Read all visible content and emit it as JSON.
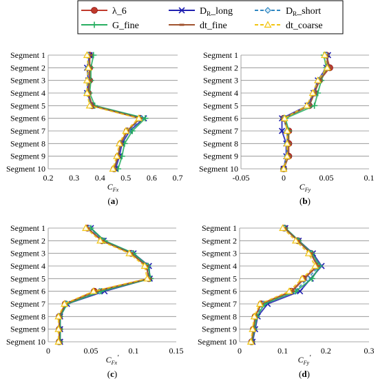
{
  "legend": {
    "entries": [
      {
        "label": "λ_6",
        "color": "#c0392b",
        "marker": "circle",
        "dash": "solid"
      },
      {
        "label": "D",
        "sub": "R",
        "suffix": "_long",
        "color": "#1f1fb0",
        "marker": "x",
        "dash": "solid"
      },
      {
        "label": "D",
        "sub": "R",
        "suffix": "_short",
        "color": "#2e86c1",
        "marker": "diamond",
        "dash": "dashed"
      },
      {
        "label": "G_fine",
        "color": "#27ae60",
        "marker": "plus",
        "dash": "solid"
      },
      {
        "label": "dt_fine",
        "color": "#a0522d",
        "marker": "dash",
        "dash": "solid"
      },
      {
        "label": "dt_coarse",
        "color": "#f1c40f",
        "marker": "triangle",
        "dash": "dashed"
      }
    ]
  },
  "chart_data": [
    {
      "type": "line",
      "panel_label": "(a)",
      "xlabel": "C",
      "xlabel_sub": "Fx",
      "xlabel_prime": false,
      "xlim": [
        0.2,
        0.7
      ],
      "xticks": [
        0.2,
        0.3,
        0.4,
        0.5,
        0.6,
        0.7
      ],
      "xtick_labels": [
        "0.2",
        "0.3",
        "0.4",
        "0.5",
        "0.6",
        "0.7"
      ],
      "categories": [
        "Segment 1",
        "Segment 2",
        "Segment 3",
        "Segment 4",
        "Segment 5",
        "Segment 6",
        "Segment 7",
        "Segment 8",
        "Segment 9",
        "Segment 10"
      ],
      "series": [
        {
          "name": "λ_6",
          "values": [
            0.36,
            0.36,
            0.36,
            0.355,
            0.37,
            0.555,
            0.505,
            0.48,
            0.47,
            0.455
          ]
        },
        {
          "name": "D_R_long",
          "values": [
            0.36,
            0.35,
            0.355,
            0.35,
            0.37,
            0.57,
            0.515,
            0.485,
            0.475,
            0.46
          ]
        },
        {
          "name": "D_R_short",
          "values": [
            0.355,
            0.355,
            0.355,
            0.35,
            0.365,
            0.56,
            0.51,
            0.48,
            0.47,
            0.455
          ]
        },
        {
          "name": "G_fine",
          "values": [
            0.375,
            0.365,
            0.365,
            0.36,
            0.38,
            0.575,
            0.525,
            0.495,
            0.485,
            0.47
          ]
        },
        {
          "name": "dt_fine",
          "values": [
            0.36,
            0.36,
            0.36,
            0.355,
            0.37,
            0.555,
            0.505,
            0.48,
            0.47,
            0.455
          ]
        },
        {
          "name": "dt_coarse",
          "values": [
            0.35,
            0.355,
            0.35,
            0.35,
            0.36,
            0.55,
            0.5,
            0.475,
            0.465,
            0.45
          ]
        }
      ]
    },
    {
      "type": "line",
      "panel_label": "(b)",
      "xlabel": "C",
      "xlabel_sub": "Fy",
      "xlabel_prime": false,
      "xlim": [
        -0.05,
        0.1
      ],
      "xticks": [
        -0.05,
        0,
        0.05,
        0.1
      ],
      "xtick_labels": [
        "-0.05",
        "0",
        "0.05",
        "0.1"
      ],
      "categories": [
        "Segment 1",
        "Segment 2",
        "Segment 3",
        "Segment 4",
        "Segment 5",
        "Segment 6",
        "Segment 7",
        "Segment 8",
        "Segment 9",
        "Segment 10"
      ],
      "series": [
        {
          "name": "λ_6",
          "values": [
            0.05,
            0.054,
            0.042,
            0.036,
            0.03,
            0.0,
            0.006,
            0.006,
            0.006,
            0.0
          ]
        },
        {
          "name": "D_R_long",
          "values": [
            0.052,
            0.05,
            0.04,
            0.035,
            0.028,
            -0.002,
            -0.002,
            0.003,
            0.003,
            0.0
          ]
        },
        {
          "name": "D_R_short",
          "values": [
            0.05,
            0.052,
            0.041,
            0.036,
            0.03,
            0.0,
            0.004,
            0.004,
            0.004,
            0.0
          ]
        },
        {
          "name": "G_fine",
          "values": [
            0.047,
            0.05,
            0.044,
            0.04,
            0.036,
            0.002,
            0.006,
            0.005,
            0.005,
            0.0
          ]
        },
        {
          "name": "dt_fine",
          "values": [
            0.05,
            0.053,
            0.042,
            0.036,
            0.03,
            0.0,
            0.005,
            0.005,
            0.005,
            0.0
          ]
        },
        {
          "name": "dt_coarse",
          "values": [
            0.048,
            0.051,
            0.04,
            0.034,
            0.027,
            0.001,
            0.004,
            0.004,
            0.004,
            0.0
          ]
        }
      ]
    },
    {
      "type": "line",
      "panel_label": "(c)",
      "xlabel": "C",
      "xlabel_sub": "Fx",
      "xlabel_prime": true,
      "xlim": [
        0,
        0.15
      ],
      "xticks": [
        0,
        0.05,
        0.1,
        0.15
      ],
      "xtick_labels": [
        "0",
        "0.05",
        "0.1",
        "0.15"
      ],
      "categories": [
        "Segment 1",
        "Segment 2",
        "Segment 3",
        "Segment 4",
        "Segment 5",
        "Segment 6",
        "Segment 7",
        "Segment 8",
        "Segment 9",
        "Segment 10"
      ],
      "series": [
        {
          "name": "λ_6",
          "values": [
            0.046,
            0.063,
            0.097,
            0.115,
            0.118,
            0.054,
            0.02,
            0.013,
            0.013,
            0.013
          ]
        },
        {
          "name": "D_R_long",
          "values": [
            0.05,
            0.065,
            0.1,
            0.118,
            0.119,
            0.066,
            0.022,
            0.014,
            0.014,
            0.014
          ]
        },
        {
          "name": "D_R_short",
          "values": [
            0.048,
            0.064,
            0.098,
            0.116,
            0.118,
            0.06,
            0.021,
            0.013,
            0.013,
            0.013
          ]
        },
        {
          "name": "G_fine",
          "values": [
            0.05,
            0.066,
            0.1,
            0.117,
            0.12,
            0.062,
            0.022,
            0.014,
            0.014,
            0.014
          ]
        },
        {
          "name": "dt_fine",
          "values": [
            0.046,
            0.063,
            0.097,
            0.115,
            0.118,
            0.056,
            0.02,
            0.013,
            0.013,
            0.013
          ]
        },
        {
          "name": "dt_coarse",
          "values": [
            0.044,
            0.061,
            0.095,
            0.113,
            0.116,
            0.053,
            0.019,
            0.012,
            0.012,
            0.012
          ]
        }
      ]
    },
    {
      "type": "line",
      "panel_label": "(d)",
      "xlabel": "C",
      "xlabel_sub": "Fy",
      "xlabel_prime": true,
      "xlim": [
        0,
        0.3
      ],
      "xticks": [
        0,
        0.1,
        0.2,
        0.3
      ],
      "xtick_labels": [
        "0",
        "0.1",
        "0.2",
        "0.3"
      ],
      "categories": [
        "Segment 1",
        "Segment 2",
        "Segment 3",
        "Segment 4",
        "Segment 5",
        "Segment 6",
        "Segment 7",
        "Segment 8",
        "Segment 9",
        "Segment 10"
      ],
      "series": [
        {
          "name": "λ_6",
          "values": [
            0.104,
            0.135,
            0.165,
            0.18,
            0.148,
            0.12,
            0.05,
            0.036,
            0.032,
            0.028
          ]
        },
        {
          "name": "D_R_long",
          "values": [
            0.106,
            0.137,
            0.17,
            0.19,
            0.165,
            0.14,
            0.065,
            0.042,
            0.036,
            0.03
          ]
        },
        {
          "name": "D_R_short",
          "values": [
            0.104,
            0.136,
            0.166,
            0.184,
            0.158,
            0.128,
            0.055,
            0.038,
            0.033,
            0.028
          ]
        },
        {
          "name": "G_fine",
          "values": [
            0.106,
            0.137,
            0.168,
            0.186,
            0.168,
            0.13,
            0.058,
            0.04,
            0.034,
            0.029
          ]
        },
        {
          "name": "dt_fine",
          "values": [
            0.104,
            0.135,
            0.165,
            0.181,
            0.15,
            0.122,
            0.05,
            0.036,
            0.032,
            0.028
          ]
        },
        {
          "name": "dt_coarse",
          "values": [
            0.1,
            0.13,
            0.16,
            0.175,
            0.145,
            0.115,
            0.047,
            0.034,
            0.03,
            0.026
          ]
        }
      ]
    }
  ]
}
